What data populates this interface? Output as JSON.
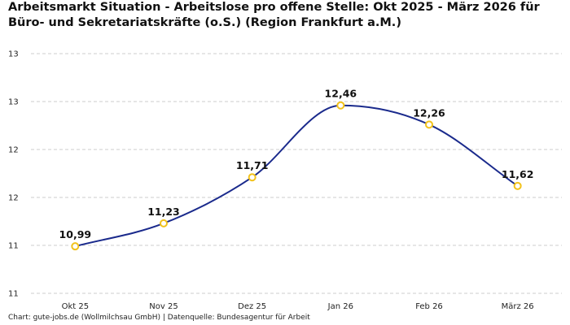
{
  "chart_data": {
    "type": "line",
    "title": "Arbeitsmarkt Situation - Arbeitslose pro offene Stelle: Okt 2025 - März 2026 für Büro- und Sekretariatskräfte (o.S.) (Region Frankfurt a.M.)",
    "xlabel": "",
    "ylabel": "",
    "categories": [
      "Okt 25",
      "Nov 25",
      "Dez 25",
      "Jan 26",
      "Feb 26",
      "März 26"
    ],
    "values": [
      10.99,
      11.23,
      11.71,
      12.46,
      12.26,
      11.62
    ],
    "data_labels": [
      "10,99",
      "11,23",
      "11,71",
      "12,46",
      "12,26",
      "11,62"
    ],
    "ylim": [
      10.5,
      13.0
    ],
    "y_ticks": [
      10.5,
      11.0,
      11.5,
      12.0,
      12.5,
      13.0
    ],
    "y_tick_labels": [
      "11",
      "11",
      "12",
      "12",
      "13",
      "13"
    ],
    "grid": true,
    "line_color": "#1a2a8c",
    "marker_color": "#f2c21b"
  },
  "source": "Chart: gute-jobs.de (Wollmilchsau GmbH) | Datenquelle: Bundesagentur für Arbeit"
}
